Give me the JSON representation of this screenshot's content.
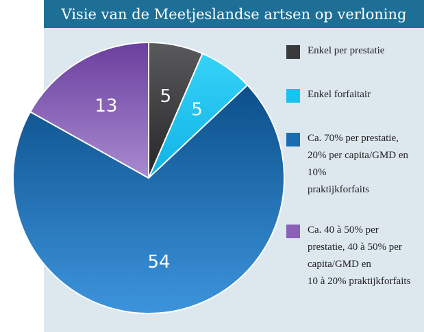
{
  "title": "Visie van de Meetjeslandse artsen op verloning",
  "colors": {
    "title_bg": "#1d6f96",
    "panel_bg": "#dde7ee"
  },
  "chart_data": {
    "type": "pie",
    "title": "Visie van de Meetjeslandse artsen op verloning",
    "legend_position": "right",
    "slices": [
      {
        "label": "Enkel per prestatie",
        "value": 5,
        "color": "#3a3a3c"
      },
      {
        "label": "Enkel forfaitair",
        "value": 5,
        "color": "#19c3f0"
      },
      {
        "label": "Ca. 70% per prestatie,\n20% per capita/GMD en\n10%\npraktijkforfaits",
        "value": 54,
        "color": "#1a6cb0"
      },
      {
        "label": "Ca. 40 à 50% per\nprestatie, 40 à 50% per\ncapita/GMD en\n10 à 20% praktijkforfaits",
        "value": 13,
        "color": "#8a60b8"
      }
    ]
  }
}
